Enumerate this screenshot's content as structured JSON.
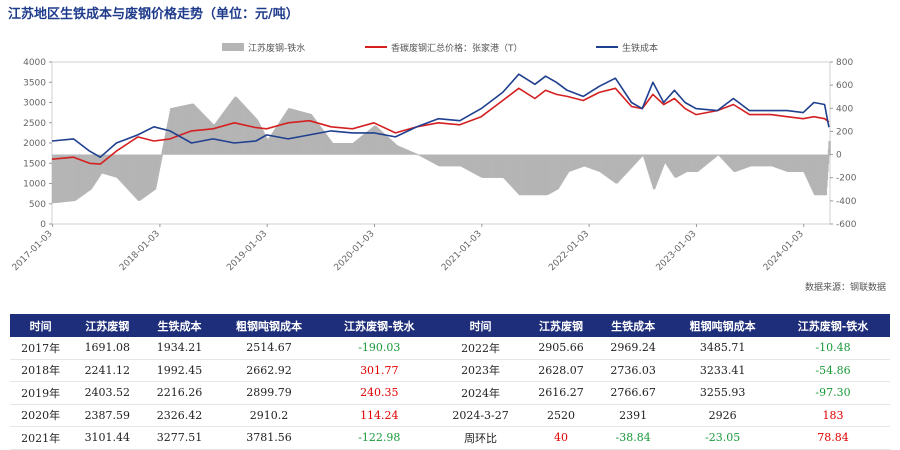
{
  "title": "江苏地区生铁成本与废钢价格走势（单位：元/吨）",
  "source": "数据来源：钢联数据",
  "colors": {
    "gap": "#b5b5b5",
    "scrap": "#d42020",
    "iron": "#1f3f8f",
    "header": "#1f2e7a",
    "neg": "#1a9a3a",
    "pos": "#e00000"
  },
  "chart_data": {
    "type": "line",
    "legend": [
      "江苏废钢-铁水",
      "香碳废钢汇总价格：张家港（T）",
      "生铁成本"
    ],
    "legend_position": "top",
    "x_ticks": [
      "2017-01-03",
      "2018-01-03",
      "2019-01-03",
      "2020-01-03",
      "2021-01-03",
      "2022-01-03",
      "2023-01-03",
      "2024-01-03"
    ],
    "y_left_ticks": [
      "0",
      "500",
      "1000",
      "1500",
      "2000",
      "2500",
      "3000",
      "3500",
      "4000"
    ],
    "y_right_ticks": [
      "-600",
      "-400",
      "-200",
      "0",
      "200",
      "400",
      "600",
      "800"
    ],
    "ylim_left": [
      0,
      4000
    ],
    "ylim_right": [
      -600,
      800
    ],
    "x_range": [
      2017.0,
      2024.25
    ],
    "series": [
      {
        "name": "香碳废钢汇总价格：张家港（T）",
        "axis": "left",
        "type": "line",
        "x": [
          2017.0,
          2017.2,
          2017.35,
          2017.45,
          2017.6,
          2017.8,
          2017.95,
          2018.1,
          2018.3,
          2018.5,
          2018.7,
          2018.9,
          2019.0,
          2019.2,
          2019.4,
          2019.6,
          2019.8,
          2020.0,
          2020.2,
          2020.4,
          2020.6,
          2020.8,
          2021.0,
          2021.2,
          2021.35,
          2021.5,
          2021.6,
          2021.7,
          2021.8,
          2021.95,
          2022.1,
          2022.25,
          2022.4,
          2022.5,
          2022.6,
          2022.7,
          2022.8,
          2022.9,
          2023.0,
          2023.2,
          2023.35,
          2023.5,
          2023.7,
          2023.85,
          2024.0,
          2024.1,
          2024.2,
          2024.24
        ],
        "y": [
          1600,
          1650,
          1500,
          1480,
          1800,
          2150,
          2050,
          2100,
          2300,
          2350,
          2500,
          2380,
          2350,
          2500,
          2550,
          2400,
          2350,
          2500,
          2250,
          2400,
          2500,
          2450,
          2650,
          3050,
          3350,
          3100,
          3300,
          3200,
          3150,
          3050,
          3250,
          3350,
          2900,
          2850,
          3200,
          2950,
          3100,
          2850,
          2700,
          2800,
          2950,
          2700,
          2700,
          2650,
          2600,
          2650,
          2600,
          2520
        ]
      },
      {
        "name": "生铁成本",
        "axis": "left",
        "type": "line",
        "x": [
          2017.0,
          2017.2,
          2017.35,
          2017.45,
          2017.6,
          2017.8,
          2017.95,
          2018.1,
          2018.3,
          2018.5,
          2018.7,
          2018.9,
          2019.0,
          2019.2,
          2019.4,
          2019.6,
          2019.8,
          2020.0,
          2020.2,
          2020.4,
          2020.6,
          2020.8,
          2021.0,
          2021.2,
          2021.35,
          2021.5,
          2021.6,
          2021.7,
          2021.8,
          2021.95,
          2022.1,
          2022.25,
          2022.4,
          2022.5,
          2022.6,
          2022.7,
          2022.8,
          2022.9,
          2023.0,
          2023.2,
          2023.35,
          2023.5,
          2023.7,
          2023.85,
          2024.0,
          2024.1,
          2024.2,
          2024.24
        ],
        "y": [
          2050,
          2100,
          1800,
          1650,
          2000,
          2200,
          2400,
          2300,
          2000,
          2100,
          2000,
          2050,
          2200,
          2100,
          2200,
          2300,
          2250,
          2250,
          2150,
          2400,
          2600,
          2550,
          2850,
          3250,
          3700,
          3450,
          3650,
          3500,
          3300,
          3150,
          3400,
          3600,
          3000,
          2850,
          3500,
          3000,
          3300,
          3000,
          2850,
          2800,
          3100,
          2800,
          2800,
          2800,
          2750,
          3000,
          2950,
          2391
        ]
      },
      {
        "name": "江苏废钢-铁水",
        "axis": "right",
        "type": "area",
        "x": [
          2017.0,
          2017.2,
          2017.35,
          2017.45,
          2017.6,
          2017.8,
          2017.95,
          2018.1,
          2018.3,
          2018.5,
          2018.7,
          2018.9,
          2019.0,
          2019.2,
          2019.4,
          2019.6,
          2019.8,
          2020.0,
          2020.2,
          2020.4,
          2020.6,
          2020.8,
          2021.0,
          2021.2,
          2021.35,
          2021.5,
          2021.6,
          2021.7,
          2021.8,
          2021.95,
          2022.1,
          2022.25,
          2022.4,
          2022.5,
          2022.6,
          2022.7,
          2022.8,
          2022.9,
          2023.0,
          2023.2,
          2023.35,
          2023.5,
          2023.7,
          2023.85,
          2024.0,
          2024.1,
          2024.2,
          2024.24
        ],
        "y": [
          -420,
          -400,
          -300,
          -160,
          -200,
          -400,
          -300,
          400,
          440,
          250,
          500,
          300,
          120,
          400,
          350,
          100,
          100,
          250,
          80,
          0,
          -100,
          -100,
          -200,
          -200,
          -350,
          -350,
          -350,
          -300,
          -150,
          -100,
          -150,
          -250,
          -100,
          0,
          -300,
          -60,
          -200,
          -150,
          -150,
          0,
          -150,
          -100,
          -100,
          -150,
          -150,
          -350,
          -350,
          183
        ]
      }
    ]
  },
  "table": {
    "headers": [
      "时间",
      "江苏废钢",
      "生铁成本",
      "粗钢吨钢成本",
      "江苏废钢-铁水",
      "时间",
      "江苏废钢",
      "生铁成本",
      "粗钢吨钢成本",
      "江苏废钢-铁水"
    ],
    "rows": [
      [
        "2017年",
        "1691.08",
        "1934.21",
        "2514.67",
        "-190.03",
        "2022年",
        "2905.66",
        "2969.24",
        "3485.71",
        "-10.48"
      ],
      [
        "2018年",
        "2241.12",
        "1992.45",
        "2662.92",
        "301.77",
        "2023年",
        "2628.07",
        "2736.03",
        "3233.41",
        "-54.86"
      ],
      [
        "2019年",
        "2403.52",
        "2216.26",
        "2899.79",
        "240.35",
        "2024年",
        "2616.27",
        "2766.67",
        "3255.93",
        "-97.30"
      ],
      [
        "2020年",
        "2387.59",
        "2326.42",
        "2910.2",
        "114.24",
        "2024-3-27",
        "2520",
        "2391",
        "2926",
        "183"
      ],
      [
        "2021年",
        "3101.44",
        "3277.51",
        "3781.56",
        "-122.98",
        "周环比",
        "40",
        "-38.84",
        "-23.05",
        "78.84"
      ]
    ]
  }
}
